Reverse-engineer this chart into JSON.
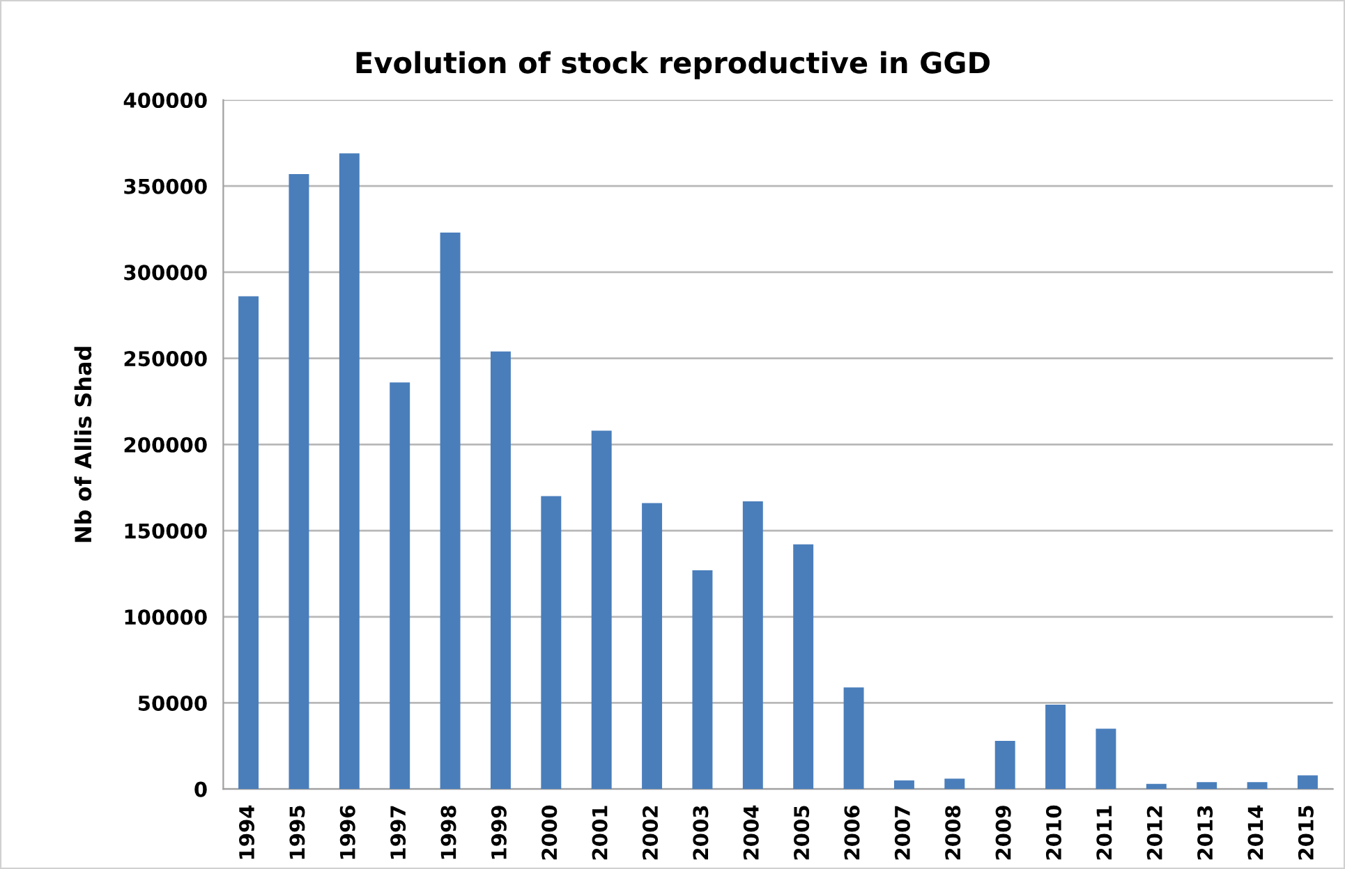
{
  "chart_data": {
    "type": "bar",
    "title": "Evolution of stock reproductive in GGD",
    "ylabel": "Nb of Allis Shad",
    "categories": [
      "1994",
      "1995",
      "1996",
      "1997",
      "1998",
      "1999",
      "2000",
      "2001",
      "2002",
      "2003",
      "2004",
      "2005",
      "2006",
      "2007",
      "2008",
      "2009",
      "2010",
      "2011",
      "2012",
      "2013",
      "2014",
      "2015"
    ],
    "values": [
      286000,
      357000,
      369000,
      236000,
      323000,
      254000,
      170000,
      208000,
      166000,
      127000,
      167000,
      142000,
      59000,
      5000,
      6000,
      28000,
      49000,
      35000,
      3000,
      4000,
      4000,
      8000
    ],
    "color": "#4a7ebb",
    "ylim": [
      0,
      400000
    ],
    "yticks": [
      0,
      50000,
      100000,
      150000,
      200000,
      250000,
      300000,
      350000,
      400000
    ],
    "grid": "y",
    "legend": false
  }
}
